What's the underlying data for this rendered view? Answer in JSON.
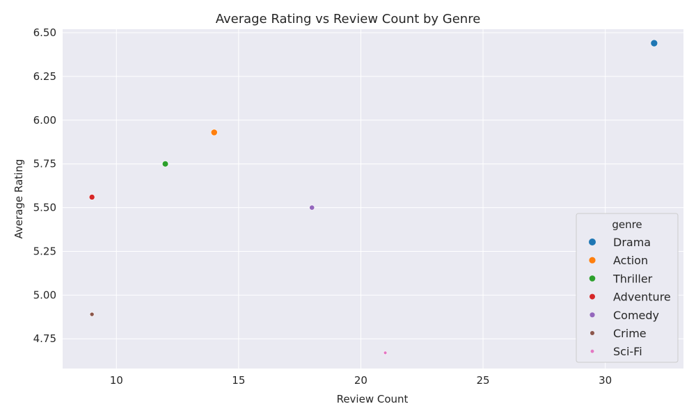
{
  "chart_data": {
    "type": "scatter",
    "title": "Average Rating vs Review Count by Genre",
    "xlabel": "Review Count",
    "ylabel": "Average Rating",
    "xlim": [
      7.8,
      33.2
    ],
    "ylim": [
      4.58,
      6.52
    ],
    "x_ticks": [
      10,
      15,
      20,
      25,
      30
    ],
    "y_ticks": [
      4.75,
      5.0,
      5.25,
      5.5,
      5.75,
      6.0,
      6.25,
      6.5
    ],
    "x_tick_labels": [
      "10",
      "15",
      "20",
      "25",
      "30"
    ],
    "y_tick_labels": [
      "4.75",
      "5.00",
      "5.25",
      "5.50",
      "5.75",
      "6.00",
      "6.25",
      "6.50"
    ],
    "grid": true,
    "background": "#eaeaf2",
    "legend": {
      "title": "genre",
      "placement": "lower-right"
    },
    "series": [
      {
        "name": "Drama",
        "color": "#1f77b4",
        "points": [
          {
            "x": 32,
            "y": 6.44
          }
        ]
      },
      {
        "name": "Action",
        "color": "#ff7f0e",
        "points": [
          {
            "x": 14,
            "y": 5.93
          }
        ]
      },
      {
        "name": "Thriller",
        "color": "#2ca02c",
        "points": [
          {
            "x": 12,
            "y": 5.75
          }
        ]
      },
      {
        "name": "Adventure",
        "color": "#d62728",
        "points": [
          {
            "x": 9,
            "y": 5.56
          }
        ]
      },
      {
        "name": "Comedy",
        "color": "#9467bd",
        "points": [
          {
            "x": 18,
            "y": 5.5
          }
        ]
      },
      {
        "name": "Crime",
        "color": "#8c564b",
        "points": [
          {
            "x": 9,
            "y": 4.89
          }
        ]
      },
      {
        "name": "Sci-Fi",
        "color": "#e377c2",
        "points": [
          {
            "x": 21,
            "y": 4.67
          }
        ]
      }
    ]
  }
}
